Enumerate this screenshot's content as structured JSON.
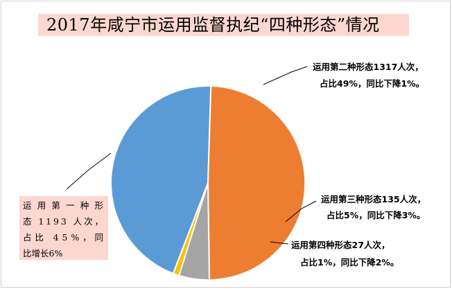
{
  "title": "2017年咸宁市运用监督执纪“四种形态”情况",
  "chart_data": {
    "type": "pie",
    "title": "2017年咸宁市运用监督执纪“四种形态”情况",
    "slices": [
      {
        "name": "运用第一种形态",
        "value": 1193,
        "label_lines": [
          "运用第一种形",
          "态 1193 人次，",
          "占比 45%，同",
          "比增长6%"
        ],
        "color": "#5b9bd5"
      },
      {
        "name": "运用第二种形态",
        "value": 1317,
        "label_lines": [
          "运用第二种形态1317人次，",
          "占比49%，同比下降1%。"
        ],
        "color": "#ed7d31"
      },
      {
        "name": "运用第三种形态",
        "value": 135,
        "label_lines": [
          "运用第三种形态135人次，",
          "占比5%，同比下降3%。"
        ],
        "color": "#a5a5a5"
      },
      {
        "name": "运用第四种形态",
        "value": 27,
        "label_lines": [
          "运用第四种形态27人次，",
          "占比1%，同比下降2%。"
        ],
        "color": "#ffc000"
      }
    ],
    "start_angle_deg": 201,
    "direction": "clockwise",
    "legend": "none",
    "label_background": "#fbd7cf",
    "slice_border_color": "#ffffff"
  }
}
